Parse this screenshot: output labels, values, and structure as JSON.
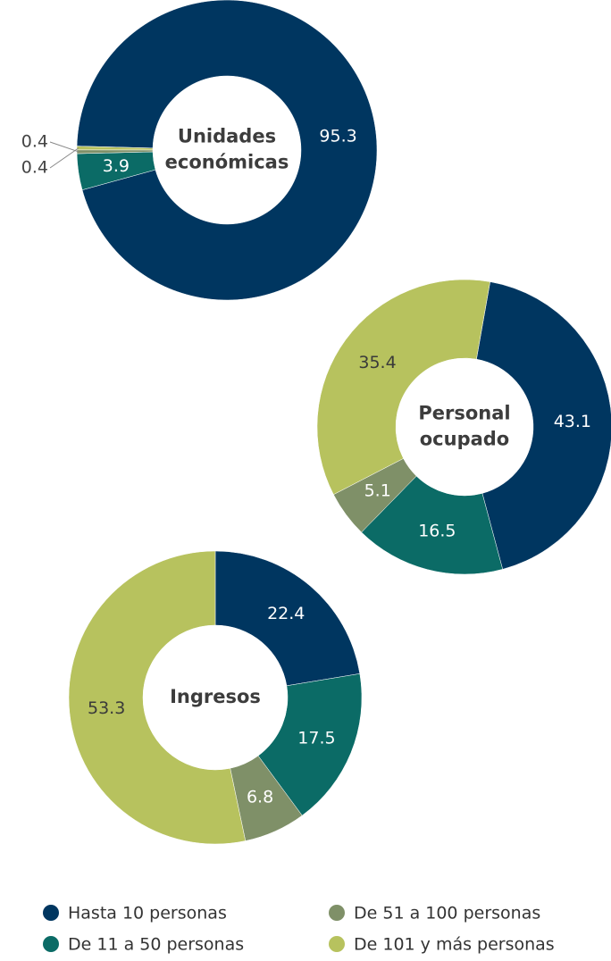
{
  "legend": {
    "categories": [
      "Hasta 10 personas",
      "De 11 a 50 personas",
      "De 51 a 100 personas",
      "De 101 y más personas"
    ],
    "colors": [
      "#003660",
      "#0b6b66",
      "#7f9068",
      "#b7c25e"
    ]
  },
  "chart_data": [
    {
      "type": "pie",
      "title": "Unidades económicas",
      "values": [
        95.3,
        3.9,
        0.4,
        0.4
      ]
    },
    {
      "type": "pie",
      "title": "Personal ocupado",
      "values": [
        43.1,
        16.5,
        5.1,
        35.4
      ]
    },
    {
      "type": "pie",
      "title": "Ingresos",
      "values": [
        22.4,
        17.5,
        6.8,
        53.3
      ]
    }
  ]
}
